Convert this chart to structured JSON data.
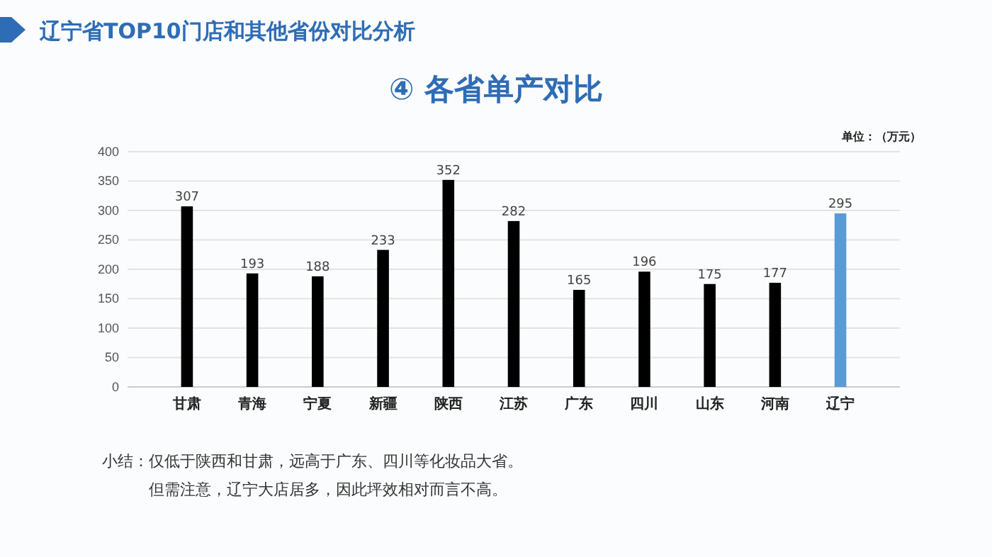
{
  "chart_data": {
    "type": "bar",
    "title": "辽宁省TOP10门店和其他省份对比分析",
    "subtitle": "④ 各省单产对比",
    "ylabel": "单位：（万元）",
    "categories": [
      "甘肃",
      "青海",
      "宁夏",
      "新疆",
      "陕西",
      "江苏",
      "广东",
      "四川",
      "山东",
      "河南",
      "辽宁"
    ],
    "values": [
      307,
      193,
      188,
      233,
      352,
      282,
      165,
      196,
      175,
      177,
      295
    ],
    "colors": [
      "#000000",
      "#000000",
      "#000000",
      "#000000",
      "#000000",
      "#000000",
      "#000000",
      "#000000",
      "#000000",
      "#000000",
      "#5b9bd5"
    ],
    "ylim": [
      0,
      400
    ],
    "yticks": [
      0,
      50,
      100,
      150,
      200,
      250,
      300,
      350,
      400
    ],
    "grid": "y",
    "data_labels": true,
    "annotations": [
      "小结：仅低于陕西和甘肃，远高于广东、四川等化妆品大省。",
      "但需注意，辽宁大店居多，因此坪效相对而言不高。"
    ]
  }
}
